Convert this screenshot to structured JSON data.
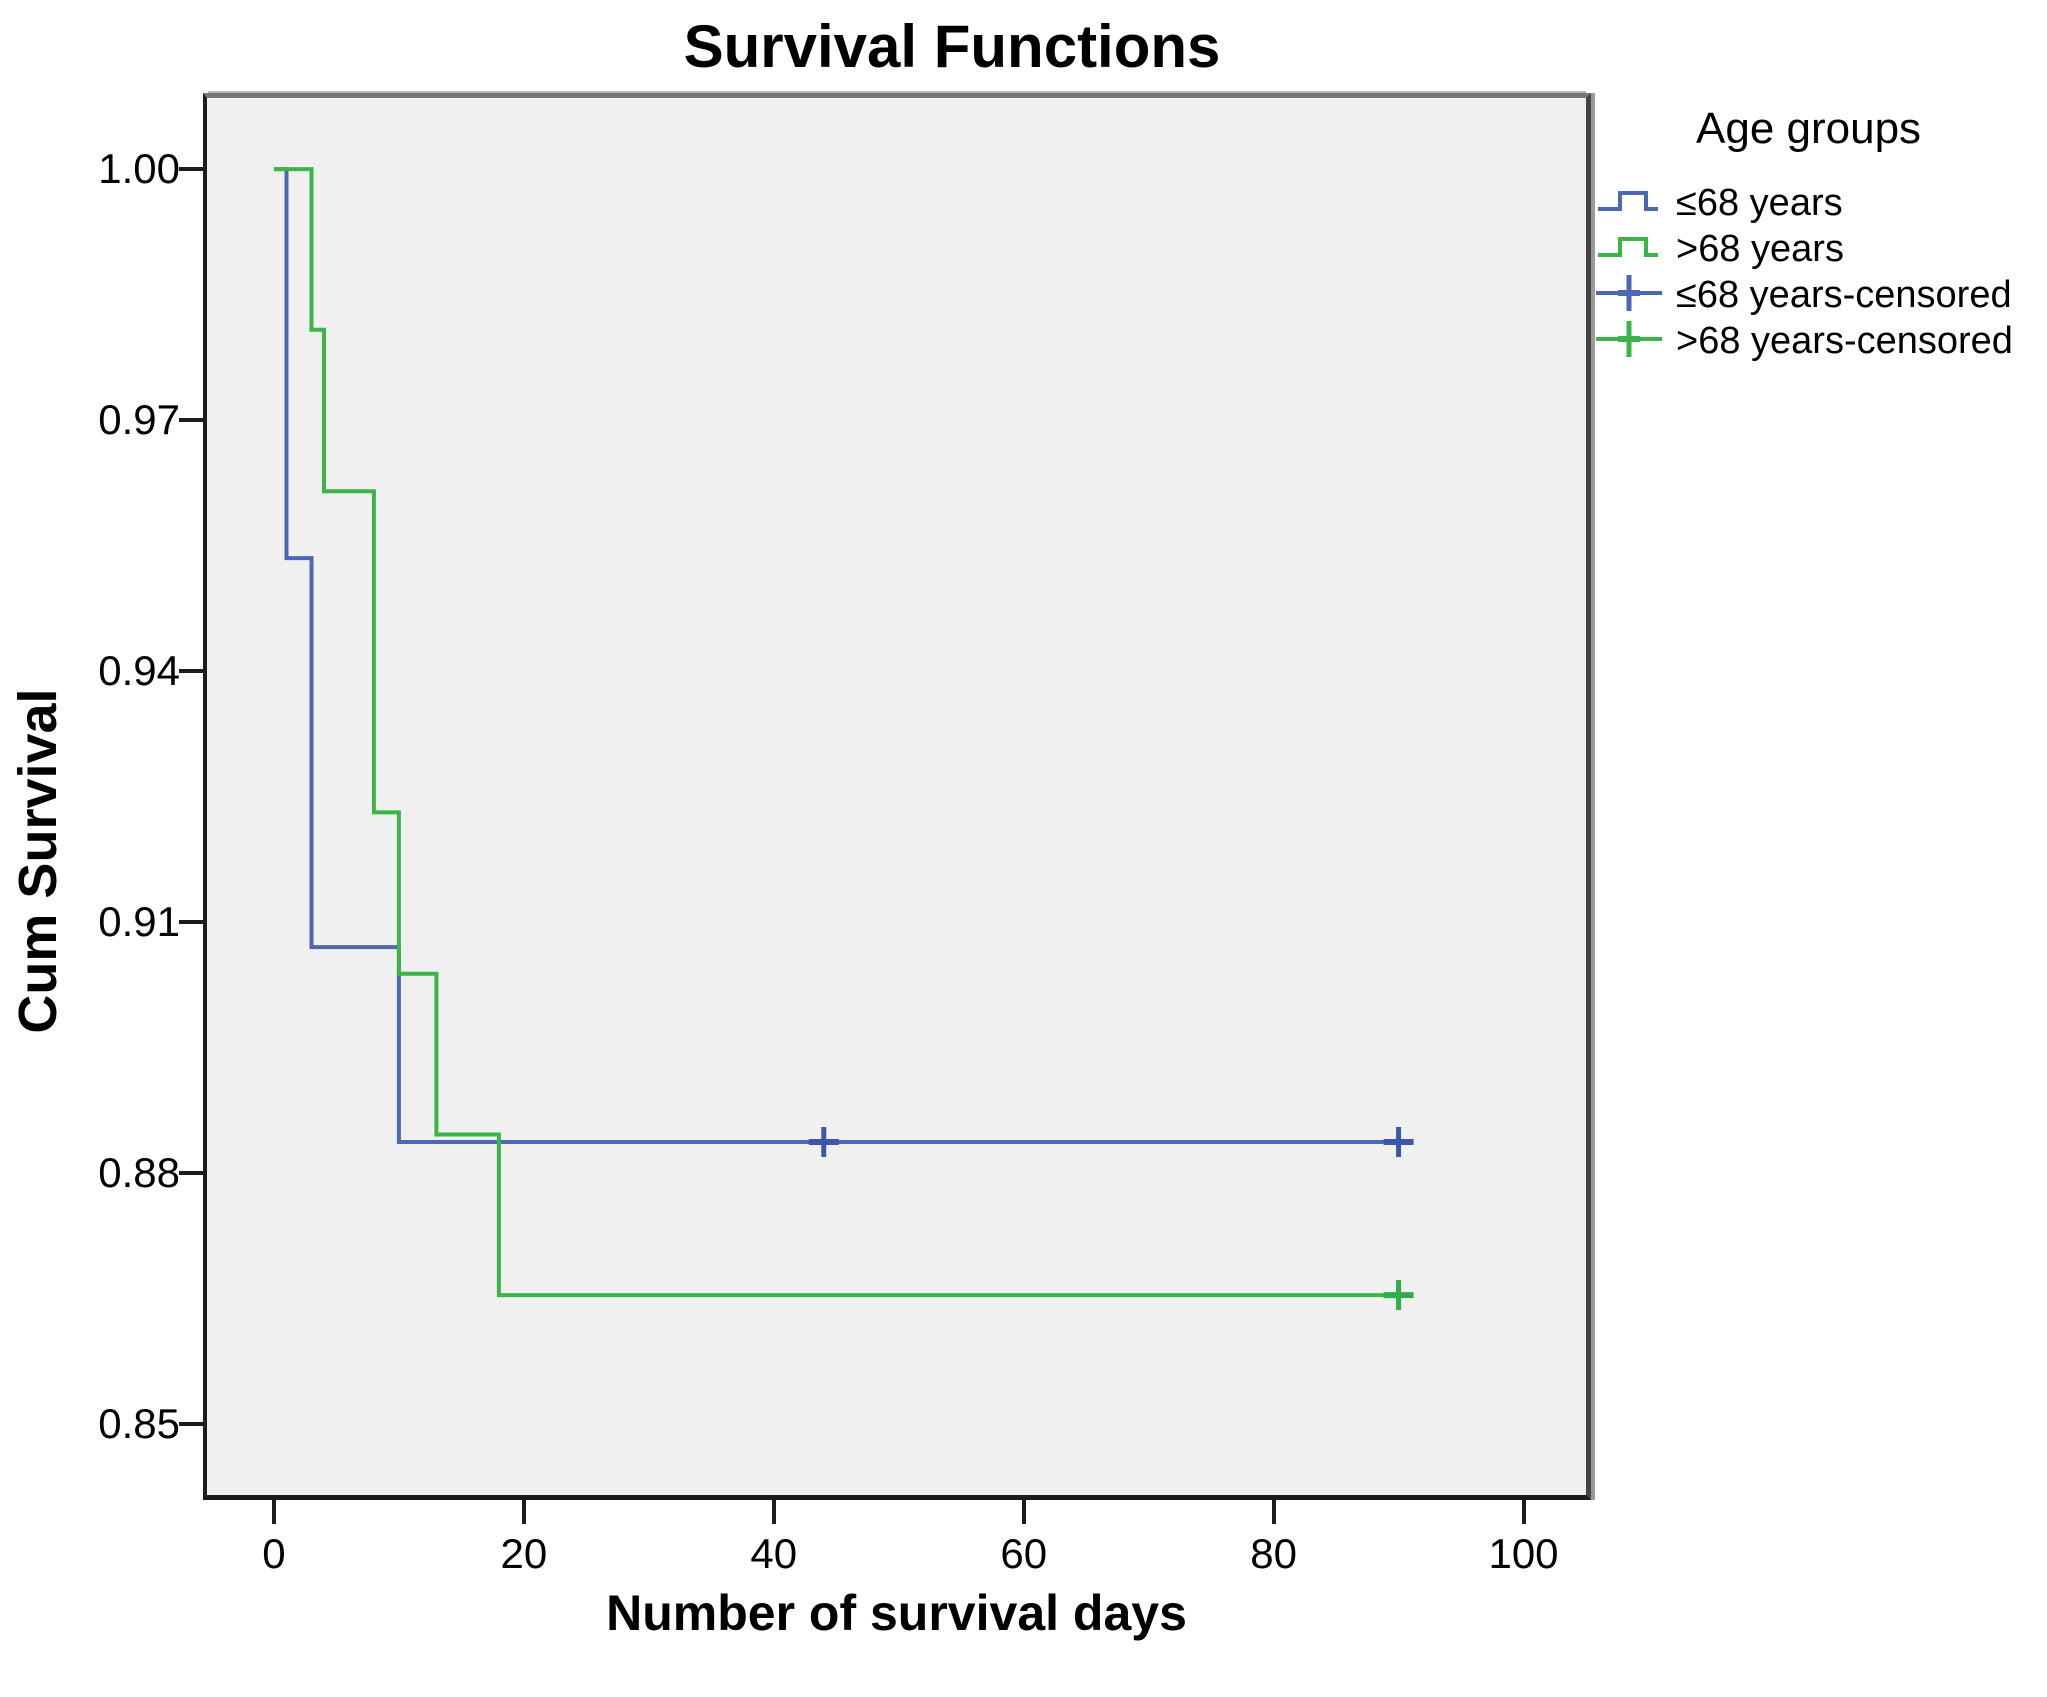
{
  "title": "Survival Functions",
  "x_axis": {
    "label": "Number of survival days"
  },
  "y_axis": {
    "label": "Cum Survival"
  },
  "legend": {
    "title": "Age groups",
    "entries": [
      {
        "label": "≤68 years",
        "symbol": "step-line",
        "color": "#4d67b2"
      },
      {
        "label": ">68 years",
        "symbol": "step-line",
        "color": "#3bb54a"
      },
      {
        "label": "≤68 years-censored",
        "symbol": "censored-plus",
        "color": "#4d67b2"
      },
      {
        "label": ">68 years-censored",
        "symbol": "censored-plus",
        "color": "#3bb54a"
      }
    ]
  },
  "chart_data": {
    "type": "line",
    "subtype": "kaplan_meier_step",
    "title": "Survival Functions",
    "xlabel": "Number of survival days",
    "ylabel": "Cum Survival",
    "xlim": [
      -5.36,
      105
    ],
    "ylim": [
      0.8415,
      1.0085
    ],
    "x_ticks": [
      0,
      20,
      40,
      60,
      80,
      100
    ],
    "y_ticks": [
      1.0,
      0.97,
      0.94,
      0.91,
      0.88,
      0.85
    ],
    "y_tick_labels": [
      "1.00",
      "0.97",
      "0.94",
      "0.91",
      "0.88",
      "0.85"
    ],
    "grid": false,
    "plot_bg": "#f0f0f0",
    "legend_title": "Age groups",
    "legend_position": "outside-top-right",
    "series": [
      {
        "name": "≤68 years",
        "color": "#4d67b2",
        "censor_color": "#3d57a8",
        "steps_day_survival": [
          [
            0,
            1.0
          ],
          [
            1,
            0.9535
          ],
          [
            3,
            0.907
          ],
          [
            10,
            0.8837
          ],
          [
            90,
            0.8837
          ]
        ],
        "censored_day_survival": [
          [
            44,
            0.8837
          ],
          [
            90,
            0.8837
          ]
        ]
      },
      {
        "name": ">68 years",
        "color": "#3bb54a",
        "censor_color": "#2fae47",
        "steps_day_survival": [
          [
            0,
            1.0
          ],
          [
            3,
            0.9808
          ],
          [
            4,
            0.9615
          ],
          [
            8,
            0.9231
          ],
          [
            10,
            0.9038
          ],
          [
            13,
            0.8846
          ],
          [
            18,
            0.8654
          ],
          [
            90,
            0.8654
          ]
        ],
        "censored_day_survival": [
          [
            90,
            0.8654
          ]
        ]
      }
    ]
  }
}
